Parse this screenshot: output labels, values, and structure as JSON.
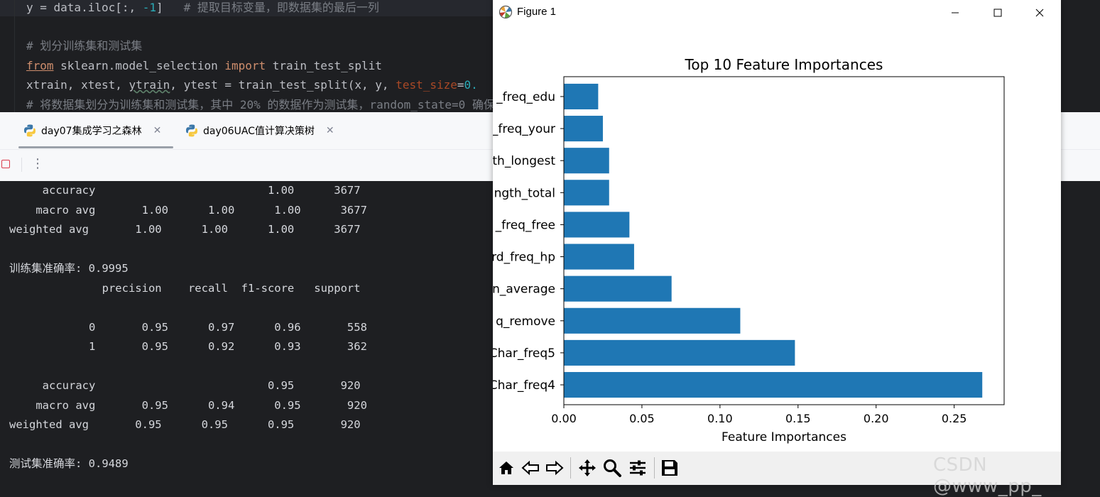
{
  "editor": {
    "lines": [
      {
        "parts": [
          {
            "t": "y = data.iloc[:, ",
            "c": ""
          },
          {
            "t": "-1",
            "c": "num"
          },
          {
            "t": "]   ",
            "c": ""
          },
          {
            "t": "# 提取目标变量，即数据集的最后一列",
            "c": "cm"
          }
        ]
      },
      {
        "parts": []
      },
      {
        "parts": [
          {
            "t": "# 划分训练集和测试集",
            "c": "cm"
          }
        ]
      },
      {
        "parts": [
          {
            "t": "from",
            "c": "kw kw-u"
          },
          {
            "t": " sklearn.model_selection ",
            "c": ""
          },
          {
            "t": "import",
            "c": "kw"
          },
          {
            "t": " train_test_split",
            "c": ""
          }
        ]
      },
      {
        "parts": [
          {
            "t": "xtrain, xtest, ",
            "c": ""
          },
          {
            "t": "ytrain",
            "c": "squig"
          },
          {
            "t": ", ytest = train_test_split(x, y, ",
            "c": ""
          },
          {
            "t": "test_size",
            "c": "param"
          },
          {
            "t": "=",
            "c": ""
          },
          {
            "t": "0.",
            "c": "num"
          }
        ]
      },
      {
        "parts": [
          {
            "t": "# 将数据集划分为训练集和测试集，其中 20% 的数据作为测试集，random_state=0 确保",
            "c": "cm"
          }
        ]
      }
    ]
  },
  "tabs": [
    {
      "label": "day07集成学习之森林",
      "active": true
    },
    {
      "label": "day06UAC值计算决策树",
      "active": false
    }
  ],
  "console": {
    "lines": [
      "     accuracy                          1.00      3677",
      "    macro avg       1.00      1.00      1.00      3677",
      "weighted avg       1.00      1.00      1.00      3677",
      "",
      "训练集准确率: 0.9995",
      "              precision    recall  f1-score   support",
      "",
      "            0       0.95      0.97      0.96       558",
      "            1       0.95      0.92      0.93       362",
      "",
      "     accuracy                          0.95       920",
      "    macro avg       0.95      0.94      0.95       920",
      "weighted avg       0.95      0.95      0.95       920",
      "",
      "测试集准确率: 0.9489"
    ]
  },
  "figure": {
    "window_title": "Figure 1",
    "icons": [
      "matplotlib-logo-icon",
      "minimize-icon",
      "maximize-icon",
      "close-icon"
    ],
    "toolbar_icons": [
      "home-icon",
      "back-icon",
      "forward-icon",
      "pan-icon",
      "zoom-icon",
      "configure-subplots-icon",
      "save-icon"
    ]
  },
  "chart_data": {
    "type": "bar",
    "orientation": "horizontal",
    "title": "Top 10 Feature Importances",
    "xlabel": "Feature Importances",
    "ylabel": "",
    "categories": [
      "Char_freq4",
      "Char_freq5",
      "q_remove",
      "n_average",
      "rd_freq_hp",
      "_freq_free",
      "ngth_total",
      "th_longest",
      "_freq_your",
      "_freq_edu"
    ],
    "values": [
      0.268,
      0.148,
      0.113,
      0.069,
      0.045,
      0.042,
      0.029,
      0.029,
      0.025,
      0.022
    ],
    "xlim": [
      0.0,
      0.282
    ],
    "xticks": [
      "0.00",
      "0.05",
      "0.10",
      "0.15",
      "0.20",
      "0.25"
    ],
    "xtick_values": [
      0,
      0.05,
      0.1,
      0.15,
      0.2,
      0.25
    ],
    "bar_color": "#1f77b4",
    "grid": false,
    "legend": "none"
  },
  "watermark": "CSDN @www_pp_"
}
